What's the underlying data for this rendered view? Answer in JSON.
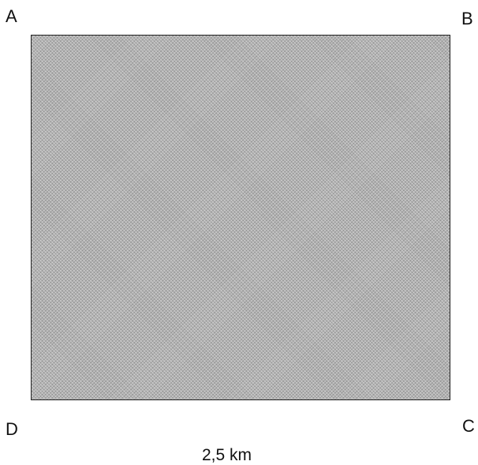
{
  "corners": {
    "a": "A",
    "b": "B",
    "c": "C",
    "d": "D"
  },
  "dimension": "2,5 km",
  "colors": {
    "fill": "#b8b8b8",
    "border": "#222222",
    "text": "#111111"
  }
}
